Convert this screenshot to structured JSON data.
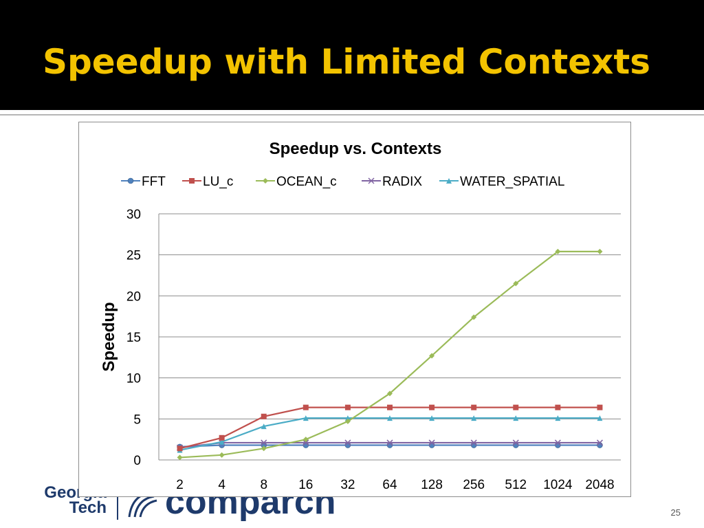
{
  "slide": {
    "title": "Speedup with Limited Contexts",
    "page_number": "25",
    "logos": {
      "left_line1": "Georgia",
      "left_line2": "Tech",
      "right": "comparch"
    }
  },
  "colors": {
    "title_bar": "#000000",
    "title_text": "#f3c300",
    "FFT": "#4f81bd",
    "LU_c": "#c0504d",
    "OCEAN_c": "#9bbb59",
    "RADIX": "#8064a2",
    "WATER_SPATIAL": "#4bacc6"
  },
  "chart_data": {
    "type": "line",
    "title": "Speedup vs. Contexts",
    "xlabel": "",
    "ylabel": "Speedup",
    "categories": [
      "2",
      "4",
      "8",
      "16",
      "32",
      "64",
      "128",
      "256",
      "512",
      "1024",
      "2048"
    ],
    "ylim": [
      0,
      30
    ],
    "yticks": [
      0,
      5,
      10,
      15,
      20,
      25,
      30
    ],
    "grid": "horizontal",
    "legend": "top",
    "series": [
      {
        "name": "FFT",
        "marker": "circle",
        "values": [
          1.6,
          1.8,
          1.8,
          1.8,
          1.8,
          1.8,
          1.8,
          1.8,
          1.8,
          1.8,
          1.8
        ]
      },
      {
        "name": "LU_c",
        "marker": "square",
        "values": [
          1.4,
          2.7,
          5.3,
          6.4,
          6.4,
          6.4,
          6.4,
          6.4,
          6.4,
          6.4,
          6.4
        ]
      },
      {
        "name": "OCEAN_c",
        "marker": "diamond",
        "values": [
          0.3,
          0.6,
          1.4,
          2.5,
          4.7,
          8.1,
          12.7,
          17.4,
          21.5,
          25.4,
          25.4
        ]
      },
      {
        "name": "RADIX",
        "marker": "x",
        "values": [
          1.5,
          2.1,
          2.1,
          2.1,
          2.1,
          2.1,
          2.1,
          2.1,
          2.1,
          2.1,
          2.1
        ]
      },
      {
        "name": "WATER_SPATIAL",
        "marker": "triangle",
        "values": [
          1.2,
          2.2,
          4.1,
          5.1,
          5.1,
          5.1,
          5.1,
          5.1,
          5.1,
          5.1,
          5.1
        ]
      }
    ]
  }
}
